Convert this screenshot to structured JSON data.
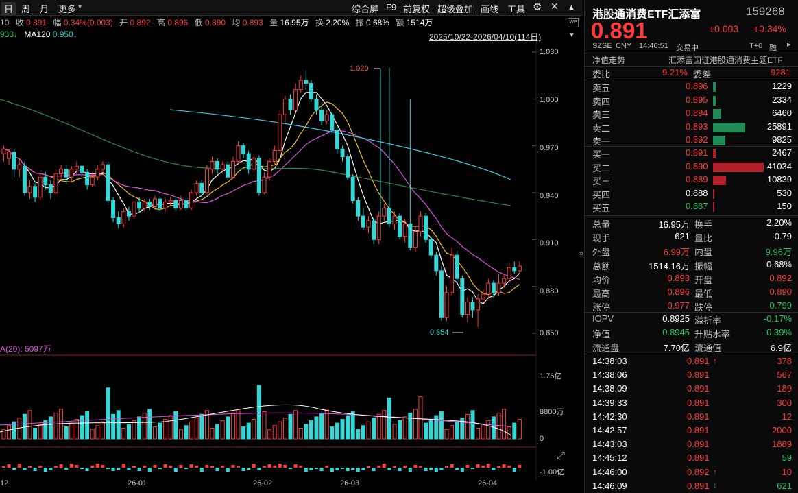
{
  "toolbar": {
    "left_tabs": [
      "日",
      "周",
      "月",
      "更多"
    ],
    "right_items": [
      "综合屏",
      "F9",
      "前复权",
      "超级叠加",
      "画线",
      "工具"
    ]
  },
  "quote_line": {
    "prefix": "10",
    "close_label": "收",
    "close_value": "0.891",
    "change_label": "幅",
    "change_value": "0.34%(0.003)",
    "open_label": "开",
    "open_value": "0.892",
    "high_label": "高",
    "high_value": "0.896",
    "low_label": "低",
    "low_value": "0.890",
    "avg_label": "均",
    "avg_value": "0.893",
    "vol_label": "量",
    "vol_value": "16.95万",
    "turnover_label": "换",
    "turnover_value": "2.20%",
    "amplitude_label": "振",
    "amplitude_value": "0.68%",
    "amount_label": "额",
    "amount_value": "1514万"
  },
  "ma_line": {
    "ma_partial": "933↓",
    "ma120_label": "MA120",
    "ma120_value": "0.950↓"
  },
  "date_range": "2025/10/22-2026/04/10(114日)",
  "chart": {
    "price_ticks": [
      "1.030",
      "1.000",
      "0.970",
      "0.940",
      "0.910",
      "0.880",
      "0.850"
    ],
    "annotation_high": "1.020",
    "annotation_low": "0.854",
    "vol_label": "A(20): 5097万",
    "vol_ticks": [
      "1.76亿",
      "8800万",
      "0"
    ],
    "macd_tick": "-1.00亿",
    "date_ticks": [
      "12",
      "26-01",
      "26-02",
      "26-03",
      "26-04"
    ]
  },
  "header": {
    "name": "港股通消费ETF汇添富",
    "code": "159268",
    "price": "0.891",
    "change": "+0.003",
    "change_pct": "+0.34%",
    "market": "SZSE",
    "currency": "CNY",
    "time": "14:46:51",
    "status": "交易中",
    "t0": "T+0",
    "margin": "融",
    "nav_label": "净值走势",
    "index_name": "汇添富国证港股通消费主题ETF"
  },
  "orderbook": {
    "ratio_label": "委比",
    "ratio_value": "9.21%",
    "diff_label": "委差",
    "diff_value": "9281",
    "asks": [
      {
        "label": "卖五",
        "price": "0.896",
        "vol": "1229",
        "ratio": 0.05
      },
      {
        "label": "卖四",
        "price": "0.895",
        "vol": "2334",
        "ratio": 0.06
      },
      {
        "label": "卖三",
        "price": "0.894",
        "vol": "6460",
        "ratio": 0.16
      },
      {
        "label": "卖二",
        "price": "0.893",
        "vol": "25891",
        "ratio": 0.63
      },
      {
        "label": "卖一",
        "price": "0.892",
        "vol": "9825",
        "ratio": 0.24
      }
    ],
    "bids": [
      {
        "label": "买一",
        "price": "0.891",
        "vol": "2467",
        "ratio": 0.06
      },
      {
        "label": "买二",
        "price": "0.890",
        "vol": "41034",
        "ratio": 1.0
      },
      {
        "label": "买三",
        "price": "0.889",
        "vol": "10839",
        "ratio": 0.26
      },
      {
        "label": "买四",
        "price": "0.888",
        "vol": "530",
        "ratio": 0.01
      },
      {
        "label": "买五",
        "price": "0.887",
        "vol": "150",
        "ratio": 0.01
      }
    ]
  },
  "stats": [
    {
      "l1": "总量",
      "v1": "16.95万",
      "c1": "white",
      "l2": "换手",
      "v2": "2.20%",
      "c2": "white"
    },
    {
      "l1": "现手",
      "v1": "621",
      "c1": "white",
      "l2": "量比",
      "v2": "0.79",
      "c2": "white"
    },
    {
      "l1": "外盘",
      "v1": "6.99万",
      "c1": "red",
      "l2": "内盘",
      "v2": "9.96万",
      "c2": "green"
    },
    {
      "l1": "总额",
      "v1": "1514.16万",
      "c1": "white",
      "l2": "振幅",
      "v2": "0.68%",
      "c2": "white"
    },
    {
      "l1": "均价",
      "v1": "0.893",
      "c1": "red",
      "l2": "开盘",
      "v2": "0.892",
      "c2": "red"
    },
    {
      "l1": "最高",
      "v1": "0.896",
      "c1": "red",
      "l2": "最低",
      "v2": "0.890",
      "c2": "red"
    },
    {
      "l1": "涨停",
      "v1": "0.977",
      "c1": "red",
      "l2": "跌停",
      "v2": "0.799",
      "c2": "green"
    }
  ],
  "iopv": [
    {
      "l1": "IOPV",
      "v1": "0.8925",
      "c1": "white",
      "l2": "溢折率",
      "v2": "-0.17%",
      "c2": "green"
    },
    {
      "l1": "净值",
      "v1": "0.8945",
      "c1": "green",
      "l2": "升贴水率",
      "v2": "-0.39%",
      "c2": "green"
    },
    {
      "l1": "流通盘",
      "v1": "7.70亿",
      "c1": "white",
      "l2": "流通值",
      "v2": "6.9亿",
      "c2": "white"
    }
  ],
  "ticks": [
    {
      "time": "14:38:03",
      "price": "0.891",
      "arrow": "↑",
      "arrow_color": "red",
      "vol": "378"
    },
    {
      "time": "14:38:06",
      "price": "0.891",
      "arrow": "",
      "arrow_color": "red",
      "vol": "567"
    },
    {
      "time": "14:38:09",
      "price": "0.891",
      "arrow": "",
      "arrow_color": "red",
      "vol": "189"
    },
    {
      "time": "14:39:33",
      "price": "0.891",
      "arrow": "",
      "arrow_color": "red",
      "vol": "300"
    },
    {
      "time": "14:42:30",
      "price": "0.891",
      "arrow": "",
      "arrow_color": "red",
      "vol": "12"
    },
    {
      "time": "14:42:57",
      "price": "0.891",
      "arrow": "",
      "arrow_color": "red",
      "vol": "2000"
    },
    {
      "time": "14:43:03",
      "price": "0.891",
      "arrow": "",
      "arrow_color": "red",
      "vol": "1889"
    },
    {
      "time": "14:45:12",
      "price": "0.891",
      "arrow": "",
      "arrow_color": "green",
      "vol": "59"
    },
    {
      "time": "14:46:00",
      "price": "0.892",
      "arrow": "↑",
      "arrow_color": "red",
      "vol": "10"
    },
    {
      "time": "14:46:09",
      "price": "0.891",
      "arrow": "↓",
      "arrow_color": "green",
      "vol": "621"
    }
  ],
  "colors": {
    "up": "#ff3b3b",
    "down": "#35d6d6",
    "ma5": "#ffffff",
    "ma10": "#f4c01a",
    "ma20": "#e052e0",
    "ma60": "#2e8b3e",
    "ma120": "#3fc6e0",
    "ask_bar": "#1f8a55",
    "bid_bar": "#b3202a"
  }
}
